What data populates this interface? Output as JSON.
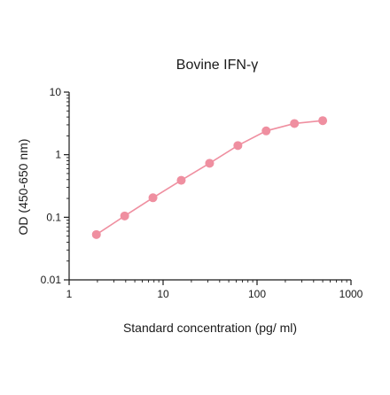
{
  "chart_data": {
    "type": "scatter",
    "title": "Bovine IFN-γ",
    "xlabel": "Standard concentration (pg/ ml)",
    "ylabel": "OD (450-650 nm)",
    "x_scale": "log",
    "y_scale": "log",
    "xlim": [
      1,
      1000
    ],
    "ylim": [
      0.01,
      10
    ],
    "x_ticks": [
      1,
      10,
      100,
      1000
    ],
    "x_tick_labels": [
      "1",
      "10",
      "100",
      "1000"
    ],
    "y_ticks": [
      10,
      1,
      0.1,
      0.01
    ],
    "y_tick_labels": [
      "10",
      "1",
      "0.1",
      "0.01"
    ],
    "grid": false,
    "legend": "none",
    "series": [
      {
        "color": "#ef8fa0",
        "connected": true,
        "points": [
          {
            "x": 1.95,
            "y": 0.053
          },
          {
            "x": 3.9,
            "y": 0.105
          },
          {
            "x": 7.8,
            "y": 0.205
          },
          {
            "x": 15.6,
            "y": 0.39
          },
          {
            "x": 31.25,
            "y": 0.73
          },
          {
            "x": 62.5,
            "y": 1.4
          },
          {
            "x": 125,
            "y": 2.4
          },
          {
            "x": 250,
            "y": 3.15
          },
          {
            "x": 500,
            "y": 3.5
          }
        ]
      }
    ]
  }
}
